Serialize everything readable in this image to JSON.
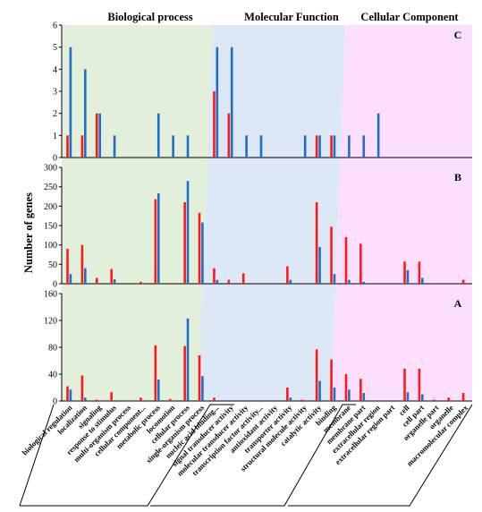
{
  "chart_data": {
    "type": "bar",
    "y_axis_label": "Number of genes",
    "sections": [
      {
        "name": "Biological process",
        "start": 0,
        "end": 9
      },
      {
        "name": "Molecular Function",
        "start": 10,
        "end": 18
      },
      {
        "name": "Cellular Component",
        "start": 19,
        "end": 27
      }
    ],
    "section_colors": [
      "#e2efda",
      "#dce8f5",
      "#fcdffc"
    ],
    "series_colors": [
      "#ff1a1a",
      "#1f6fc4"
    ],
    "categories": [
      "biological regulation",
      "localization",
      "signaling",
      "response to stimulus",
      "multi-organism process",
      "cellular component...",
      "metabolic process",
      "locomotion",
      "cellular process",
      "single-organism process",
      "nucleic acid binding...",
      "signal transducer activity",
      "molecular transducer activity",
      "transcription factor activity...",
      "antioxidant activity",
      "transporter activity",
      "structural molecule activity",
      "catalytic activity",
      "binding",
      "membrane",
      "membrane part",
      "extracellular region",
      "extracellular region part",
      "cell",
      "cell part",
      "organelle part",
      "organelle",
      "macromolecular complex"
    ],
    "panels": [
      {
        "label": "C",
        "ylim": [
          0,
          6
        ],
        "yticks": [
          "0",
          "1",
          "2",
          "3",
          "4",
          "5",
          "6"
        ],
        "series": [
          {
            "values": [
              1,
              1,
              2,
              0,
              0,
              0,
              0,
              0,
              0,
              0,
              3,
              2,
              0,
              0,
              0,
              0,
              0,
              1,
              1,
              0,
              0,
              0,
              0,
              0,
              0,
              0,
              0,
              0
            ]
          },
          {
            "values": [
              5,
              4,
              2,
              1,
              0,
              0,
              2,
              1,
              1,
              0,
              5,
              5,
              1,
              1,
              0,
              0,
              1,
              1,
              1,
              1,
              1,
              2,
              0,
              0,
              0,
              0,
              0,
              0
            ]
          }
        ]
      },
      {
        "label": "B",
        "ylim": [
          0,
          300
        ],
        "yticks": [
          "0",
          "50",
          "100",
          "150",
          "200",
          "250",
          "300"
        ],
        "series": [
          {
            "values": [
              90,
              100,
              15,
              38,
              0,
              5,
              218,
              2,
              210,
              183,
              40,
              10,
              27,
              2,
              0,
              45,
              2,
              210,
              147,
              120,
              103,
              0,
              0,
              57,
              57,
              2,
              2,
              10
            ]
          },
          {
            "values": [
              25,
              40,
              0,
              12,
              0,
              0,
              233,
              0,
              265,
              158,
              10,
              0,
              0,
              0,
              0,
              10,
              0,
              95,
              25,
              10,
              5,
              0,
              0,
              35,
              15,
              0,
              0,
              0
            ]
          }
        ]
      },
      {
        "label": "A",
        "ylim": [
          0,
          160
        ],
        "yticks": [
          "0",
          "40",
          "80",
          "120",
          "160"
        ],
        "series": [
          {
            "values": [
              22,
              38,
              2,
              13,
              0,
              5,
              83,
              3,
              82,
              68,
              5,
              0,
              0,
              0,
              0,
              20,
              2,
              77,
              62,
              40,
              33,
              0,
              0,
              48,
              48,
              2,
              5,
              12
            ]
          },
          {
            "values": [
              17,
              5,
              0,
              0,
              0,
              0,
              32,
              0,
              123,
              37,
              0,
              0,
              0,
              0,
              0,
              5,
              0,
              30,
              20,
              17,
              12,
              0,
              0,
              13,
              10,
              0,
              0,
              0
            ]
          }
        ]
      }
    ]
  }
}
